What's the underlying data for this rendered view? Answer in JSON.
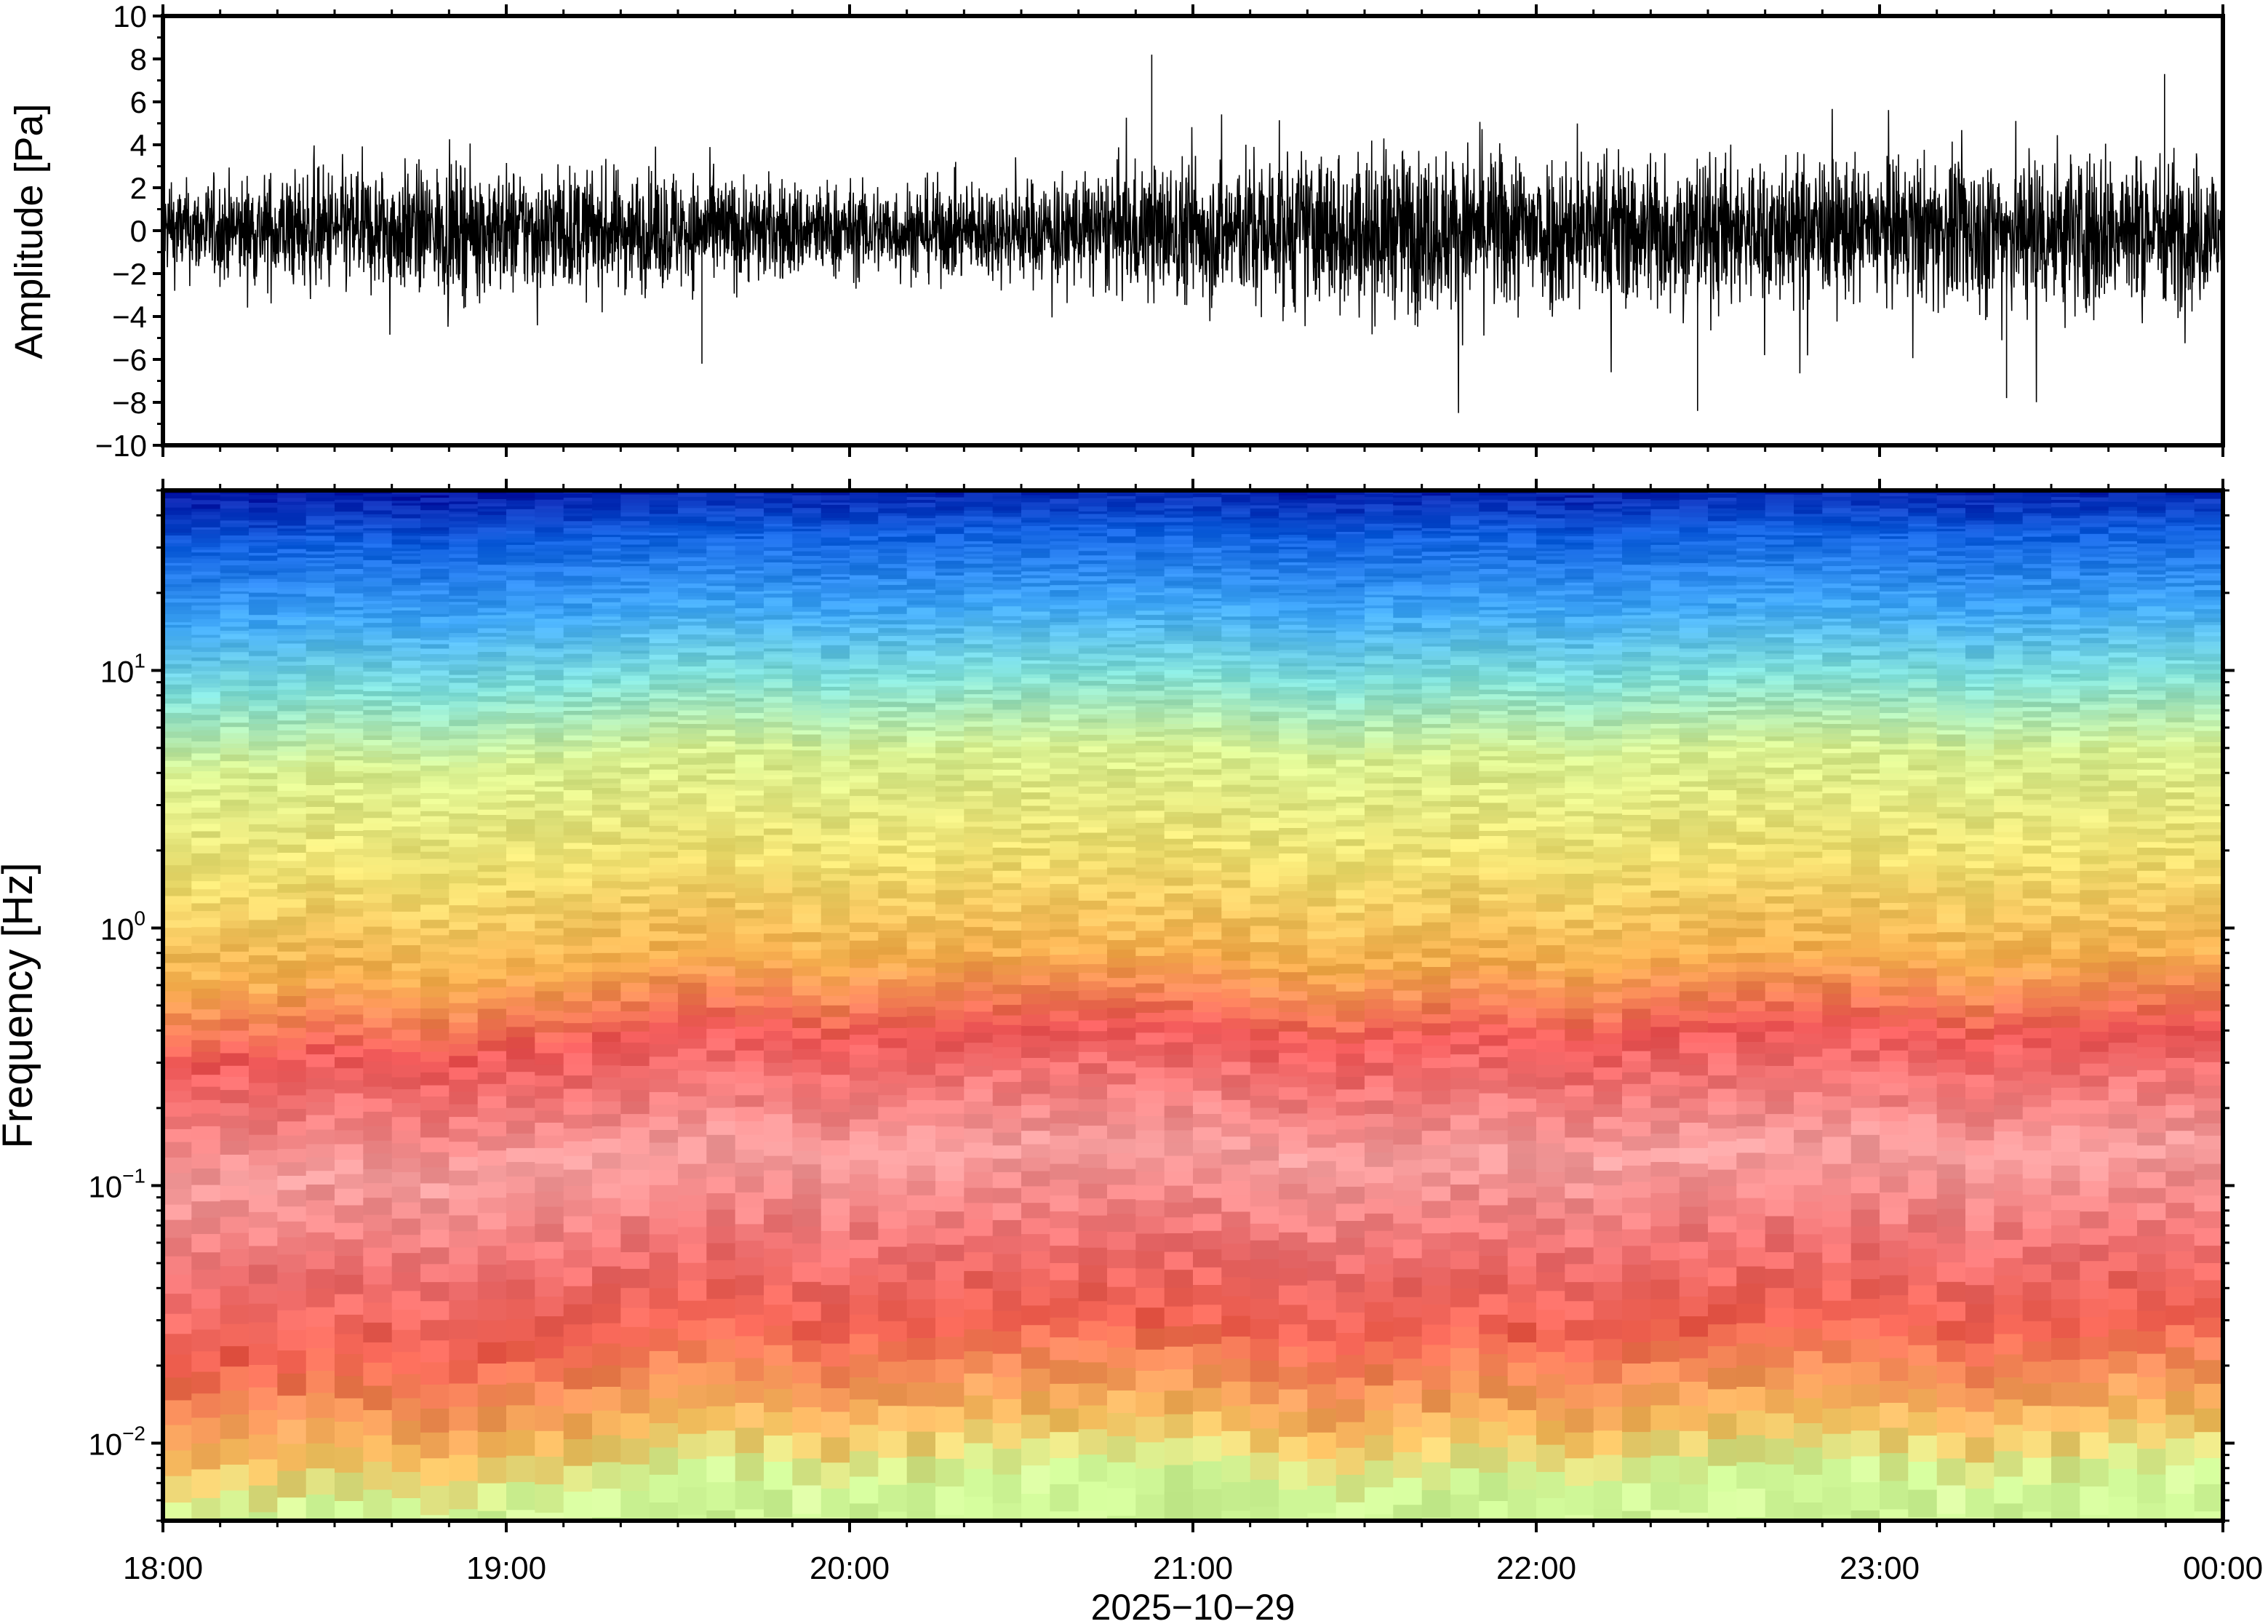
{
  "chart_data": [
    {
      "type": "line",
      "title": "",
      "ylabel": "Amplitude [Pa]",
      "ylim": [
        -10,
        10
      ],
      "yticks": [
        10,
        8,
        6,
        4,
        2,
        0,
        -2,
        -4,
        -6,
        -8,
        -10
      ],
      "ytick_labels": [
        "10",
        "8",
        "6",
        "4",
        "2",
        "0",
        "−2",
        "−4",
        "−6",
        "−8",
        "−10"
      ],
      "xlim_hours": [
        18,
        24
      ],
      "series": [
        {
          "color": "#000000",
          "description_points": "noisy infrasound pressure trace around 0 Pa",
          "envelope_hours": [
            18,
            18.5,
            19,
            19.5,
            20,
            20.5,
            21,
            21.5,
            22,
            22.5,
            23,
            23.5,
            24
          ],
          "envelope_amplitude": [
            2.5,
            3.5,
            3.5,
            3.2,
            2.6,
            2.8,
            4.0,
            4.5,
            4.5,
            4.2,
            3.8,
            4.8,
            4.0
          ],
          "notable_peaks": [
            {
              "hour": 19.57,
              "value": -6.2
            },
            {
              "hour": 20.88,
              "value": 8.2
            },
            {
              "hour": 22.47,
              "value": -8.4
            },
            {
              "hour": 23.37,
              "value": -7.8
            },
            {
              "hour": 23.83,
              "value": 7.3
            }
          ]
        }
      ]
    },
    {
      "type": "heatmap",
      "title": "",
      "ylabel": "Frequency [Hz]",
      "xlabel": "2025−10−29",
      "yscale": "log",
      "ylim": [
        0.005,
        50
      ],
      "yticks": [
        {
          "base": "10",
          "exp": "1",
          "value": 10
        },
        {
          "base": "10",
          "exp": "0",
          "value": 1
        },
        {
          "base": "10",
          "exp": "−1",
          "value": 0.1
        },
        {
          "base": "10",
          "exp": "−2",
          "value": 0.01
        }
      ],
      "xticks": [
        "18:00",
        "19:00",
        "20:00",
        "21:00",
        "22:00",
        "23:00",
        "00:00"
      ],
      "xlim_hours": [
        18,
        24
      ],
      "colormap": [
        "#0000a0",
        "#1060e0",
        "#30a0ff",
        "#60d0f0",
        "#90f0c0",
        "#d0f890",
        "#f0f080",
        "#f8d060",
        "#f8a050",
        "#f07050",
        "#f05050",
        "#f89090",
        "#f8c0c0"
      ],
      "band_profile": [
        {
          "freq": 50,
          "color": "#0010a0"
        },
        {
          "freq": 30,
          "color": "#1060e0"
        },
        {
          "freq": 15,
          "color": "#40a8f8"
        },
        {
          "freq": 8,
          "color": "#80e0d8"
        },
        {
          "freq": 4,
          "color": "#d8f090"
        },
        {
          "freq": 1.5,
          "color": "#f0e070"
        },
        {
          "freq": 0.6,
          "color": "#f8b050"
        },
        {
          "freq": 0.3,
          "color": "#f05858"
        },
        {
          "freq": 0.1,
          "color": "#f8a0a0"
        },
        {
          "freq": 0.04,
          "color": "#f07070"
        },
        {
          "freq": 0.02,
          "color": "#f06050"
        },
        {
          "freq": 0.008,
          "color": "#f8c060"
        },
        {
          "freq": 0.005,
          "color": "#d0f898"
        }
      ]
    }
  ]
}
